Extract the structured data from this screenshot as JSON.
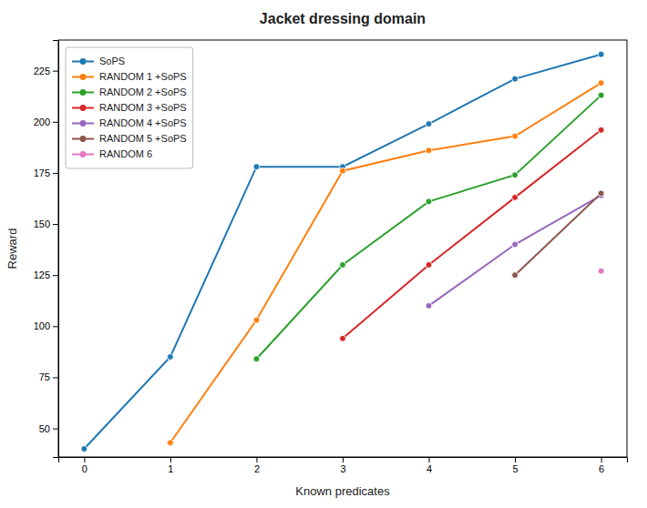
{
  "chart_data": {
    "type": "line",
    "title": "Jacket dressing domain",
    "x_label": "Known predicates",
    "y_label": "Reward",
    "marker": "circle",
    "series": [
      {
        "name": "SoPS",
        "color": "#1f77b4",
        "x": [
          0,
          1,
          2,
          3,
          4,
          5,
          6
        ],
        "values": [
          40,
          85,
          178,
          178,
          199,
          221,
          233
        ]
      },
      {
        "name": "RANDOM 1 +SoPS",
        "color": "#ff7f0e",
        "x": [
          1,
          2,
          3,
          4,
          5,
          6
        ],
        "values": [
          43,
          103,
          176,
          186,
          193,
          219
        ]
      },
      {
        "name": "RANDOM 2 +SoPS",
        "color": "#2ca02c",
        "x": [
          2,
          3,
          4,
          5,
          6
        ],
        "values": [
          84,
          130,
          161,
          174,
          213
        ]
      },
      {
        "name": "RANDOM 3 +SoPS",
        "color": "#d62728",
        "x": [
          3,
          4,
          5,
          6
        ],
        "values": [
          94,
          130,
          163,
          196
        ]
      },
      {
        "name": "RANDOM 4 +SoPS",
        "color": "#9467bd",
        "x": [
          4,
          5,
          6
        ],
        "values": [
          110,
          140,
          164
        ]
      },
      {
        "name": "RANDOM 5 +SoPS",
        "color": "#8c564b",
        "x": [
          5,
          6
        ],
        "values": [
          125,
          165
        ]
      },
      {
        "name": "RANDOM 6",
        "color": "#e377c2",
        "x": [
          6
        ],
        "values": [
          127
        ]
      }
    ],
    "xlim": [
      -0.3,
      6.3
    ],
    "ylim": [
      36,
      240
    ],
    "xticks": [
      0,
      1,
      2,
      3,
      4,
      5,
      6
    ],
    "yticks": [
      50,
      75,
      100,
      125,
      150,
      175,
      200,
      225
    ],
    "legend": "upper left",
    "grid": false
  }
}
